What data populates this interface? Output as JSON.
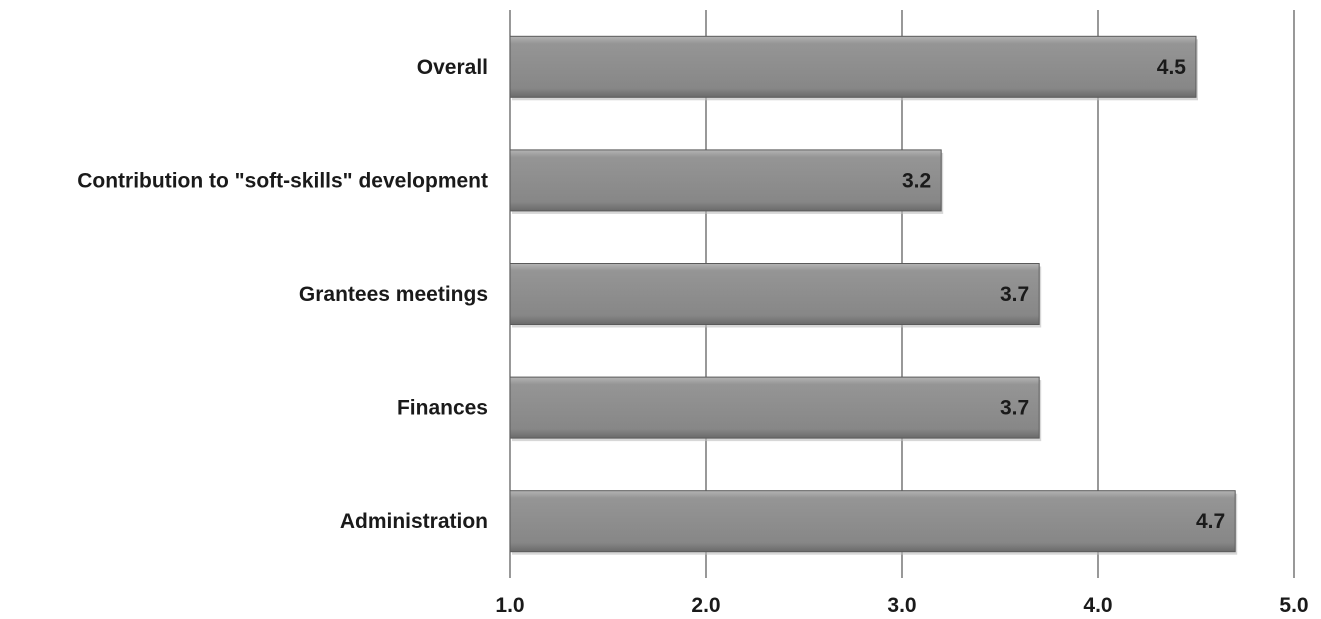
{
  "chart_data": {
    "type": "bar",
    "orientation": "horizontal",
    "categories": [
      "Overall",
      "Contribution to \"soft-skills\" development",
      "Grantees meetings",
      "Finances",
      "Administration"
    ],
    "values": [
      4.5,
      3.2,
      3.7,
      3.7,
      4.7
    ],
    "data_labels": [
      "4.5",
      "3.2",
      "3.7",
      "3.7",
      "4.7"
    ],
    "xlim": [
      1.0,
      5.0
    ],
    "x_ticks": [
      1.0,
      2.0,
      3.0,
      4.0,
      5.0
    ],
    "x_tick_labels": [
      "1.0",
      "2.0",
      "3.0",
      "4.0",
      "5.0"
    ],
    "title": "",
    "xlabel": "",
    "ylabel": "",
    "grid": "vertical",
    "legend": "none",
    "bar_color": "#8c8c8c",
    "grid_color": "#555555"
  }
}
